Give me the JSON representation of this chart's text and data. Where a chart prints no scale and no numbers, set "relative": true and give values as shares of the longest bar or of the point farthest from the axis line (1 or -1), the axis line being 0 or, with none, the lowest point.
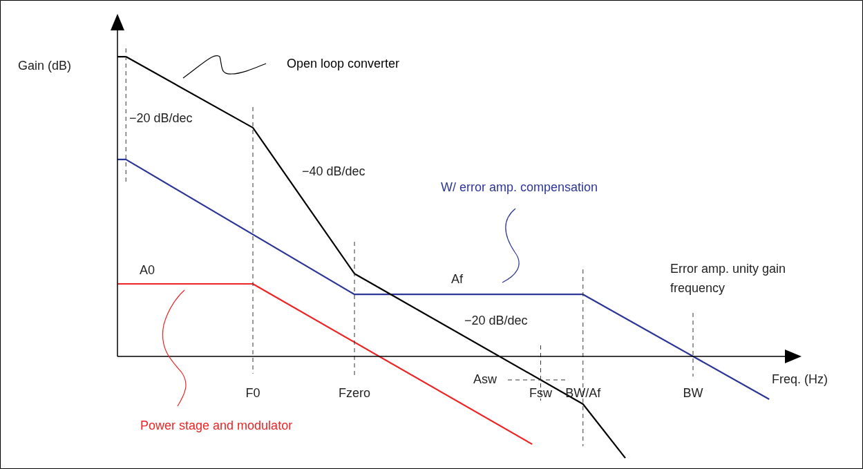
{
  "chart_data": {
    "type": "line",
    "relative": true,
    "ylabel": "Gain (dB)",
    "xlabel": "Freq. (Hz)",
    "categories": [
      null,
      null,
      null,
      null,
      null,
      null,
      null,
      null,
      null,
      null,
      null,
      null,
      null,
      null,
      null,
      null,
      "F0",
      null,
      null,
      null,
      null,
      null,
      null,
      null,
      null,
      null,
      null,
      null,
      "Fzero",
      null,
      null,
      null,
      null,
      null,
      null,
      null,
      null,
      null,
      null,
      null,
      null,
      null,
      null,
      null,
      null,
      null,
      null,
      null,
      null,
      null,
      "Fsw",
      null,
      null,
      null,
      null,
      "BW/Af",
      null,
      null,
      null,
      null,
      null,
      null,
      null,
      null,
      null,
      null,
      null,
      null,
      "BW",
      null,
      null,
      null,
      null,
      null,
      null,
      null,
      null,
      null,
      null,
      null,
      null
    ],
    "series": [
      {
        "name": "Open loop converter",
        "color": "#000000",
        "values": [
          1,
          1,
          null,
          null,
          null,
          null,
          null,
          null,
          null,
          null,
          null,
          null,
          null,
          null,
          null,
          null,
          0.763,
          null,
          null,
          null,
          null,
          null,
          null,
          null,
          null,
          null,
          null,
          null,
          0.276,
          null,
          null,
          null,
          null,
          null,
          null,
          null,
          null,
          null,
          null,
          null,
          null,
          null,
          null,
          null,
          null,
          null,
          null,
          null,
          null,
          null,
          null,
          null,
          null,
          null,
          null,
          -0.159,
          null,
          null,
          null,
          null,
          -0.339,
          null,
          null,
          null,
          null,
          null,
          null,
          null,
          null,
          null,
          null,
          null,
          null,
          null,
          null,
          null,
          null,
          null,
          null,
          null,
          null
        ]
      },
      {
        "name": "W/ error amp. compensation",
        "color": "#2b3595",
        "values": [
          0.657,
          0.657,
          null,
          null,
          null,
          null,
          null,
          null,
          null,
          null,
          null,
          null,
          null,
          null,
          null,
          null,
          null,
          null,
          null,
          null,
          null,
          null,
          null,
          null,
          null,
          null,
          null,
          null,
          0.207,
          null,
          null,
          null,
          null,
          null,
          null,
          null,
          null,
          null,
          null,
          null,
          null,
          null,
          null,
          null,
          null,
          null,
          null,
          null,
          null,
          null,
          null,
          null,
          null,
          null,
          null,
          0.207,
          null,
          null,
          null,
          null,
          null,
          null,
          null,
          null,
          null,
          null,
          null,
          null,
          null,
          null,
          null,
          null,
          null,
          null,
          null,
          null,
          null,
          -0.143,
          null,
          null,
          null
        ]
      },
      {
        "name": "Power stage and modulator",
        "color": "#ee2424",
        "values": [
          0.242,
          null,
          null,
          null,
          null,
          null,
          null,
          null,
          null,
          null,
          null,
          null,
          null,
          null,
          null,
          null,
          0.242,
          null,
          null,
          null,
          null,
          null,
          null,
          null,
          null,
          null,
          null,
          null,
          null,
          null,
          null,
          null,
          null,
          null,
          null,
          null,
          null,
          null,
          null,
          null,
          null,
          null,
          null,
          null,
          null,
          null,
          null,
          null,
          null,
          -0.293,
          null,
          null,
          null,
          null,
          null,
          null,
          null,
          null,
          null,
          null,
          null,
          null,
          null,
          null,
          null,
          null,
          null,
          null,
          null,
          null,
          null,
          null,
          null,
          null,
          null,
          null,
          null,
          null,
          null,
          null,
          null
        ]
      }
    ],
    "ref_lines": [
      {
        "axis": "x",
        "value": "F0",
        "line_style": "dashed"
      },
      {
        "axis": "x",
        "value": "Fzero",
        "line_style": "dashed"
      },
      {
        "axis": "x",
        "value": "Fsw",
        "line_style": "dashed"
      },
      {
        "axis": "x",
        "value": "BW/Af",
        "line_style": "dashed"
      },
      {
        "axis": "x",
        "value": "BW",
        "line_style": "dashed"
      }
    ],
    "annotations": [
      "−20 dB/dec",
      "−40 dB/dec",
      "A0",
      "Af",
      "−20 dB/dec",
      "Error amp. unity gain frequency",
      "Asw"
    ],
    "line_style": "solid",
    "marker": "none",
    "legend": false
  }
}
